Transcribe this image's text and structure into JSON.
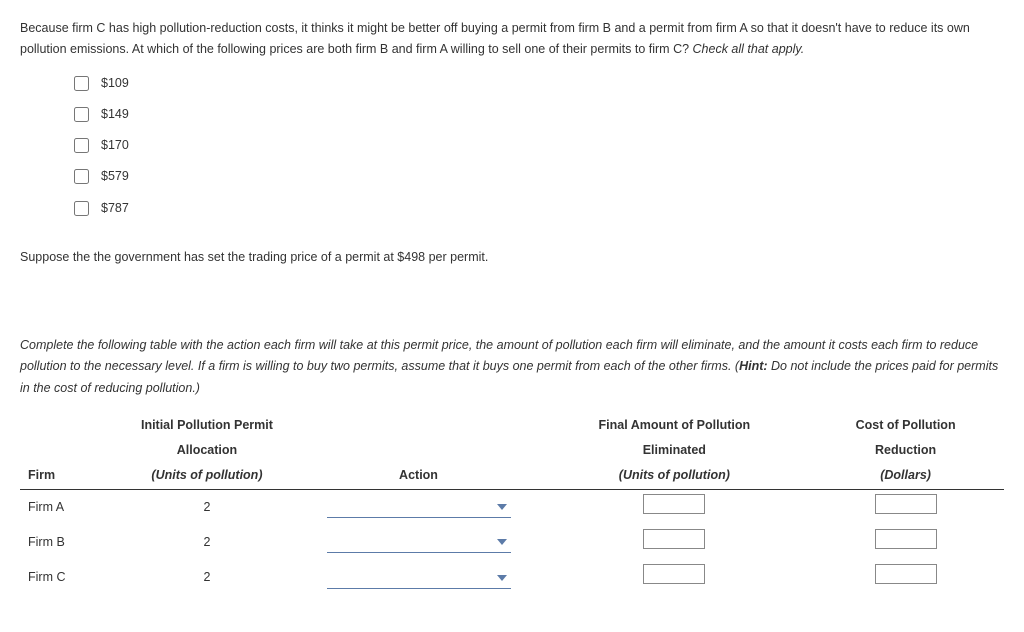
{
  "paragraph1_a": "Because firm C has high pollution-reduction costs, it thinks it might be better off buying a permit from firm B and a permit from firm A so that it doesn't have to reduce its own pollution emissions. At which of the following prices are both firm B and firm A willing to sell one of their permits to firm C? ",
  "paragraph1_b": "Check all that apply.",
  "options": [
    "$109",
    "$149",
    "$170",
    "$579",
    "$787"
  ],
  "paragraph2": "Suppose the the government has set the trading price of a permit at $498 per permit.",
  "paragraph3_a": "Complete the following table with the action each firm will take at this permit price, the amount of pollution each firm will eliminate, and the amount it costs each firm to reduce pollution to the necessary level. If a firm is willing to buy two permits, assume that it buys one permit from each of the other firms. (",
  "paragraph3_hint_label": "Hint:",
  "paragraph3_b": " Do not include the prices paid for permits in the cost of reducing pollution.)",
  "table": {
    "head_firm": "Firm",
    "head_alloc_1": "Initial Pollution Permit",
    "head_alloc_2": "Allocation",
    "head_alloc_unit": "(Units of pollution)",
    "head_action": "Action",
    "head_elim_1": "Final Amount of Pollution",
    "head_elim_2": "Eliminated",
    "head_elim_unit": "(Units of pollution)",
    "head_cost_1": "Cost of Pollution",
    "head_cost_2": "Reduction",
    "head_cost_unit": "(Dollars)",
    "rows": [
      {
        "firm": "Firm A",
        "alloc": "2"
      },
      {
        "firm": "Firm B",
        "alloc": "2"
      },
      {
        "firm": "Firm C",
        "alloc": "2"
      }
    ]
  }
}
